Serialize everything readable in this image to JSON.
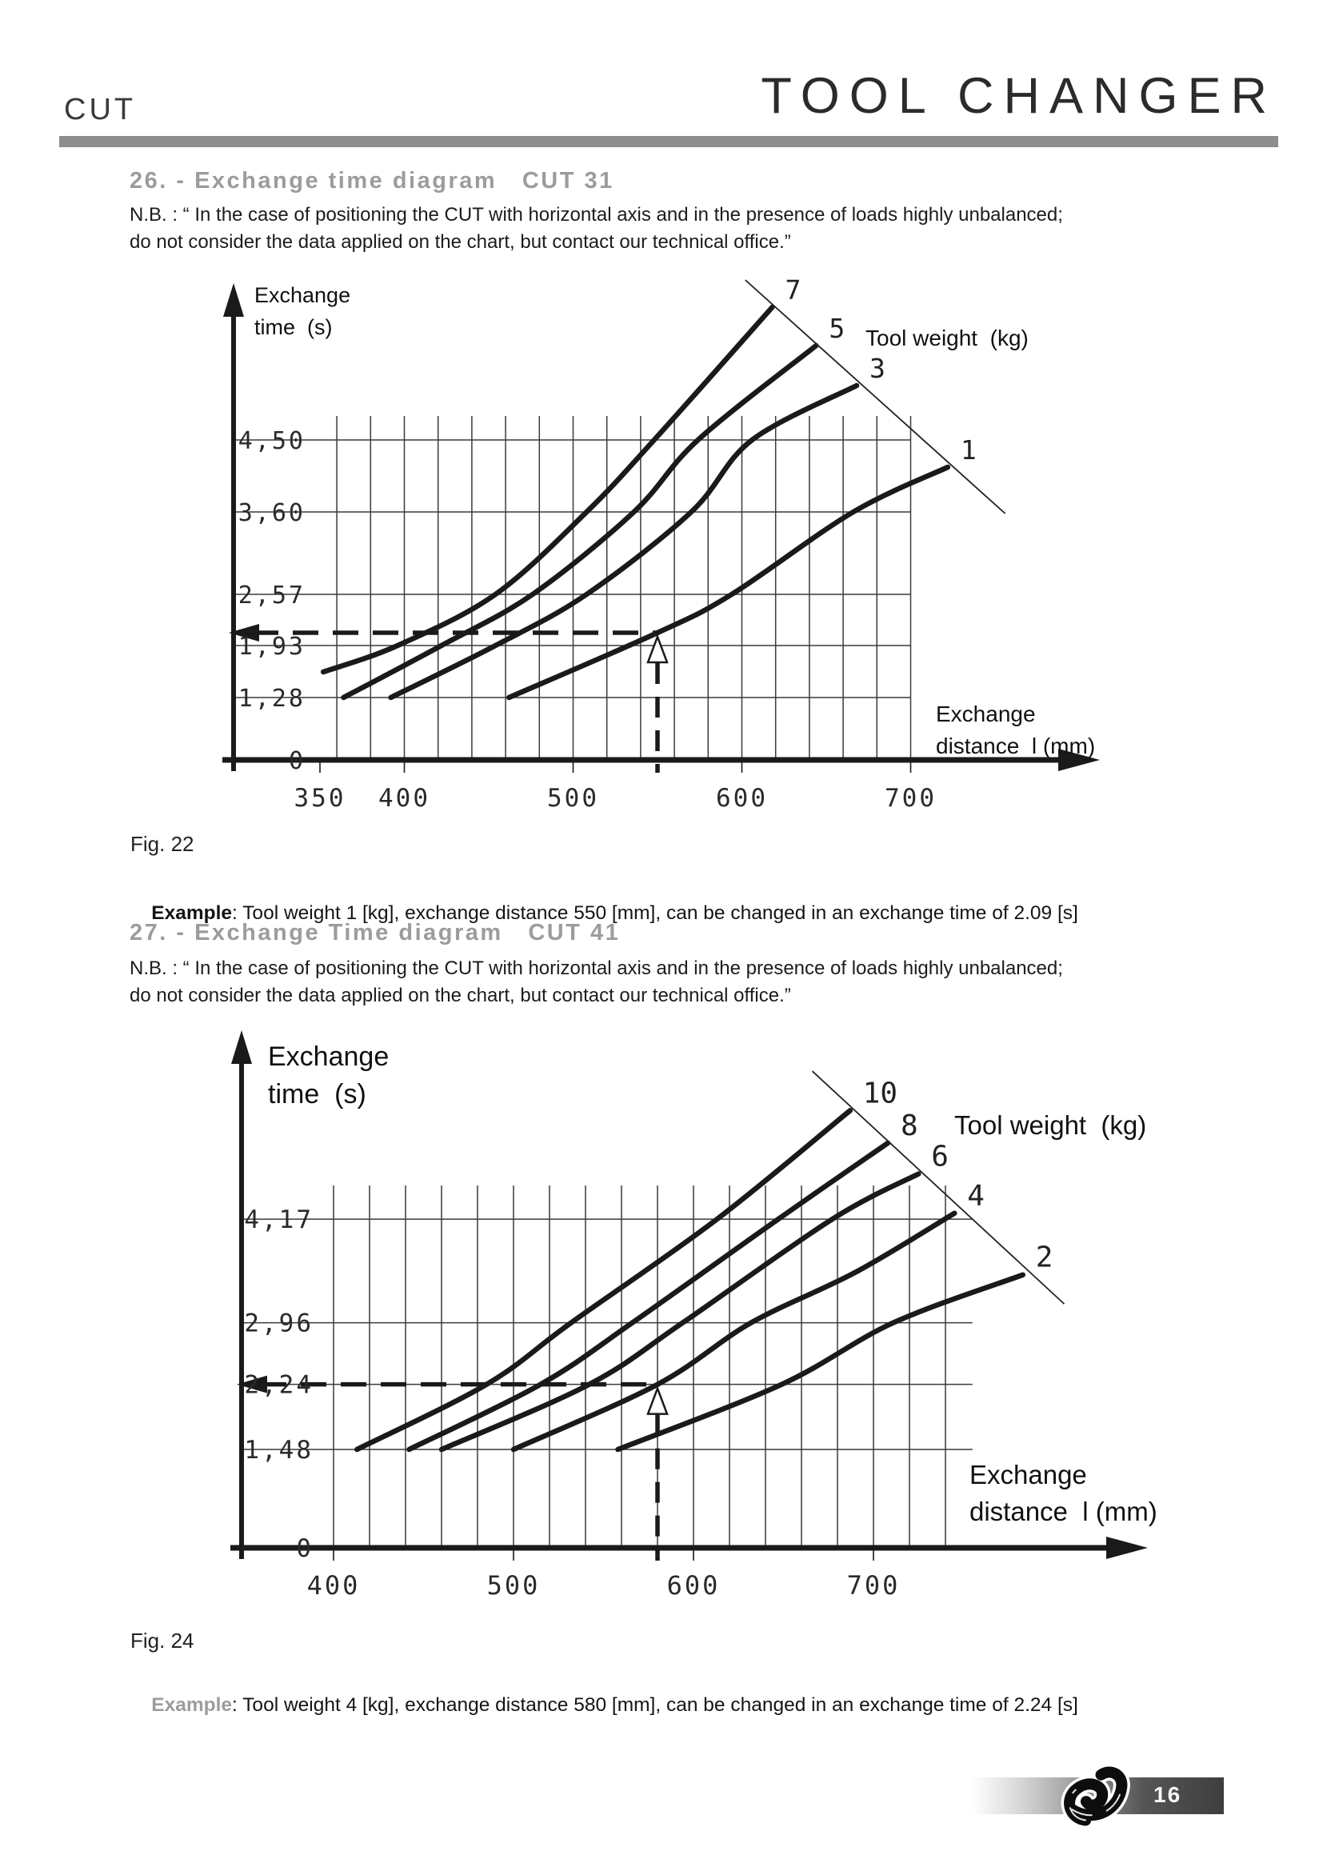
{
  "page": {
    "header": {
      "left": "CUT",
      "right": "TOOL CHANGER"
    },
    "sections": [
      {
        "number_title": "26. - Exchange time diagram   CUT 31",
        "nb_line1": "N.B. : “ In the case of positioning the CUT with horizontal axis and in the presence of loads highly unbalanced;",
        "nb_line2": "do not consider the data applied on the chart, but contact our technical office.”",
        "fig_caption": "Fig. 22",
        "example_label": "Example",
        "example_rest": ": Tool weight 1 [kg], exchange distance 550 [mm], can be changed in an exchange time of 2.09 [s]"
      },
      {
        "number_title": "27. - Exchange Time diagram   CUT 41",
        "nb_line1": "N.B. : “ In the case of positioning the CUT with horizontal axis and in the presence of loads highly unbalanced;",
        "nb_line2": "do not consider the data applied on the chart, but contact our technical office.”",
        "fig_caption": "Fig. 24",
        "example_label": "Example",
        "example_rest": ": Tool weight 4 [kg], exchange distance 580 [mm], can be changed in an exchange time of 2.24 [s]"
      }
    ],
    "footer": {
      "page_number": "16",
      "logo": "knot-logo"
    }
  },
  "chart_data": [
    {
      "type": "line",
      "figure": "Fig. 22",
      "model": "CUT 31",
      "y_axis_title_lines": [
        "Exchange",
        "time  (s)"
      ],
      "x_axis_title_lines": [
        "Exchange",
        "distance  l (mm)"
      ],
      "legend_title": "Tool weight  (kg)",
      "x_unit": "mm",
      "y_unit": "s",
      "x_ticks": [
        {
          "label": "350",
          "value": 350
        },
        {
          "label": "400",
          "value": 400
        },
        {
          "label": "500",
          "value": 500
        },
        {
          "label": "600",
          "value": 600
        },
        {
          "label": "700",
          "value": 700
        }
      ],
      "y_ticks": [
        {
          "label": "4,50",
          "value": 4.5
        },
        {
          "label": "3,60",
          "value": 3.6
        },
        {
          "label": "2,57",
          "value": 2.57
        },
        {
          "label": "1,93",
          "value": 1.93
        },
        {
          "label": "1,28",
          "value": 1.28
        },
        {
          "label": "0",
          "value": 0
        }
      ],
      "grid_y_values": [
        1.28,
        1.93,
        2.57,
        3.6,
        4.5
      ],
      "series": [
        {
          "name": "7",
          "points": [
            [
              352,
              1.6
            ],
            [
              396,
              1.93
            ],
            [
              454,
              2.57
            ],
            [
              508,
              3.6
            ],
            [
              548,
              4.5
            ],
            [
              618,
              6.16
            ]
          ]
        },
        {
          "name": "5",
          "points": [
            [
              364,
              1.28
            ],
            [
              422,
              1.93
            ],
            [
              476,
              2.57
            ],
            [
              536,
              3.6
            ],
            [
              574,
              4.5
            ],
            [
              644,
              5.68
            ]
          ]
        },
        {
          "name": "3",
          "points": [
            [
              392,
              1.28
            ],
            [
              454,
              1.93
            ],
            [
              508,
              2.57
            ],
            [
              570,
              3.6
            ],
            [
              606,
              4.5
            ],
            [
              668,
              5.18
            ]
          ]
        },
        {
          "name": "1",
          "points": [
            [
              462,
              1.28
            ],
            [
              550,
              2.09
            ],
            [
              594,
              2.57
            ],
            [
              666,
              3.6
            ],
            [
              722,
              4.16
            ]
          ]
        }
      ],
      "diagonal_line": [
        [
          602,
          6.5
        ],
        [
          756,
          3.58
        ]
      ],
      "guide": {
        "x": 550,
        "y": 2.09
      }
    },
    {
      "type": "line",
      "figure": "Fig. 24",
      "model": "CUT 41",
      "y_axis_title_lines": [
        "Exchange",
        "time  (s)"
      ],
      "x_axis_title_lines": [
        "Exchange",
        "distance  l (mm)"
      ],
      "legend_title": "Tool weight  (kg)",
      "x_unit": "mm",
      "y_unit": "s",
      "x_ticks": [
        {
          "label": "400",
          "value": 400
        },
        {
          "label": "500",
          "value": 500
        },
        {
          "label": "600",
          "value": 600
        },
        {
          "label": "700",
          "value": 700
        }
      ],
      "y_ticks": [
        {
          "label": "4,17",
          "value": 4.17
        },
        {
          "label": "2,96",
          "value": 2.96
        },
        {
          "label": "2,24",
          "value": 2.24
        },
        {
          "label": "1,48",
          "value": 1.48
        },
        {
          "label": "0",
          "value": 0
        }
      ],
      "grid_y_values": [
        1.48,
        2.24,
        2.96,
        4.17
      ],
      "series": [
        {
          "name": "10",
          "points": [
            [
              413,
              1.48
            ],
            [
              485,
              2.24
            ],
            [
              532,
              2.96
            ],
            [
              613,
              4.17
            ],
            [
              687,
              5.44
            ]
          ]
        },
        {
          "name": "8",
          "points": [
            [
              442,
              1.48
            ],
            [
              515,
              2.24
            ],
            [
              566,
              2.96
            ],
            [
              647,
              4.17
            ],
            [
              708,
              5.06
            ]
          ]
        },
        {
          "name": "6",
          "points": [
            [
              460,
              1.48
            ],
            [
              542,
              2.24
            ],
            [
              594,
              2.96
            ],
            [
              677,
              4.17
            ],
            [
              725,
              4.7
            ]
          ]
        },
        {
          "name": "4",
          "points": [
            [
              500,
              1.48
            ],
            [
              580,
              2.24
            ],
            [
              632,
              2.96
            ],
            [
              690,
              3.55
            ],
            [
              745,
              4.24
            ]
          ]
        },
        {
          "name": "2",
          "points": [
            [
              558,
              1.48
            ],
            [
              649,
              2.24
            ],
            [
              711,
              2.96
            ],
            [
              783,
              3.52
            ]
          ]
        }
      ],
      "diagonal_line": [
        [
          666,
          5.9
        ],
        [
          806,
          3.18
        ]
      ],
      "guide": {
        "x": 580,
        "y": 2.24
      }
    }
  ]
}
